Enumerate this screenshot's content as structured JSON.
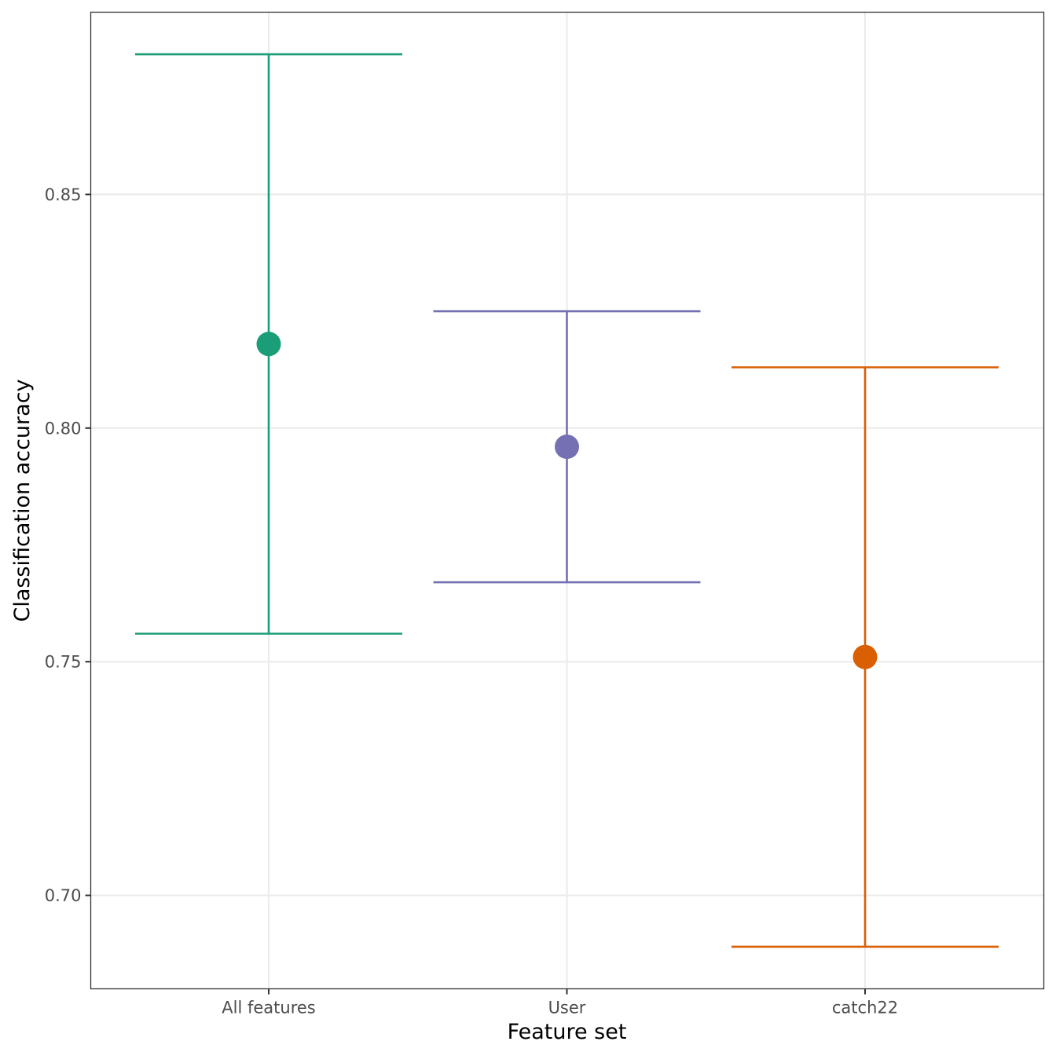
{
  "chart_data": {
    "type": "errorbar",
    "title": "",
    "xlabel": "Feature set",
    "ylabel": "Classification accuracy",
    "categories": [
      "All features",
      "User",
      "catch22"
    ],
    "series": [
      {
        "category": "All features",
        "mean": 0.818,
        "lower": 0.756,
        "upper": 0.88,
        "color": "#1b9e77"
      },
      {
        "category": "User",
        "mean": 0.796,
        "lower": 0.767,
        "upper": 0.825,
        "color": "#7570b3"
      },
      {
        "category": "catch22",
        "mean": 0.751,
        "lower": 0.689,
        "upper": 0.813,
        "color": "#d95f02"
      }
    ],
    "ylim": [
      0.68,
      0.889
    ],
    "yticks": [
      0.7,
      0.75,
      0.8,
      0.85
    ],
    "ytick_labels": [
      "0.70",
      "0.75",
      "0.80",
      "0.85"
    ],
    "grid": true,
    "legend": "none"
  }
}
